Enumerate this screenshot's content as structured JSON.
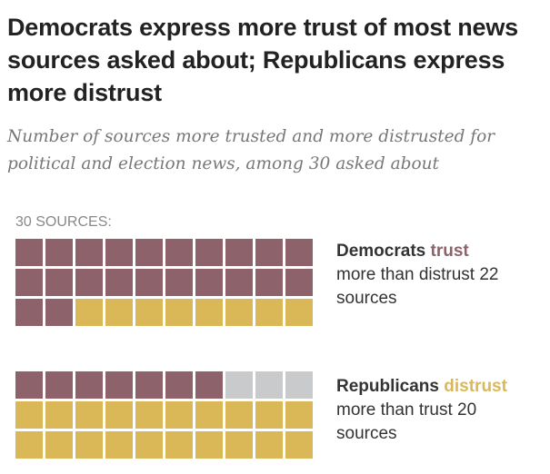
{
  "title": "Democrats express more trust of most news sources asked about; Republicans express more distrust",
  "subtitle": "Number of sources more trusted and more distrusted for political and election news, among 30 asked about",
  "colors": {
    "trust": "#8e626a",
    "distrust": "#dbb857",
    "neither": "#c9cacc"
  },
  "chart_data": {
    "type": "waffle",
    "total_label": "30 SOURCES:",
    "total": 30,
    "columns": 10,
    "groups": [
      {
        "name": "Democrats",
        "counts": {
          "trust": 22,
          "distrust": 8,
          "neither": 0
        },
        "legend": {
          "bold": "Democrats",
          "highlight": "trust",
          "rest": "more than distrust 22 sources"
        }
      },
      {
        "name": "Republicans",
        "counts": {
          "trust": 7,
          "neither": 3,
          "distrust": 20
        },
        "order": [
          "trust",
          "neither",
          "distrust"
        ],
        "legend": {
          "bold": "Republicans",
          "highlight": "distrust",
          "rest": "more than trust 20 sources"
        }
      }
    ]
  }
}
